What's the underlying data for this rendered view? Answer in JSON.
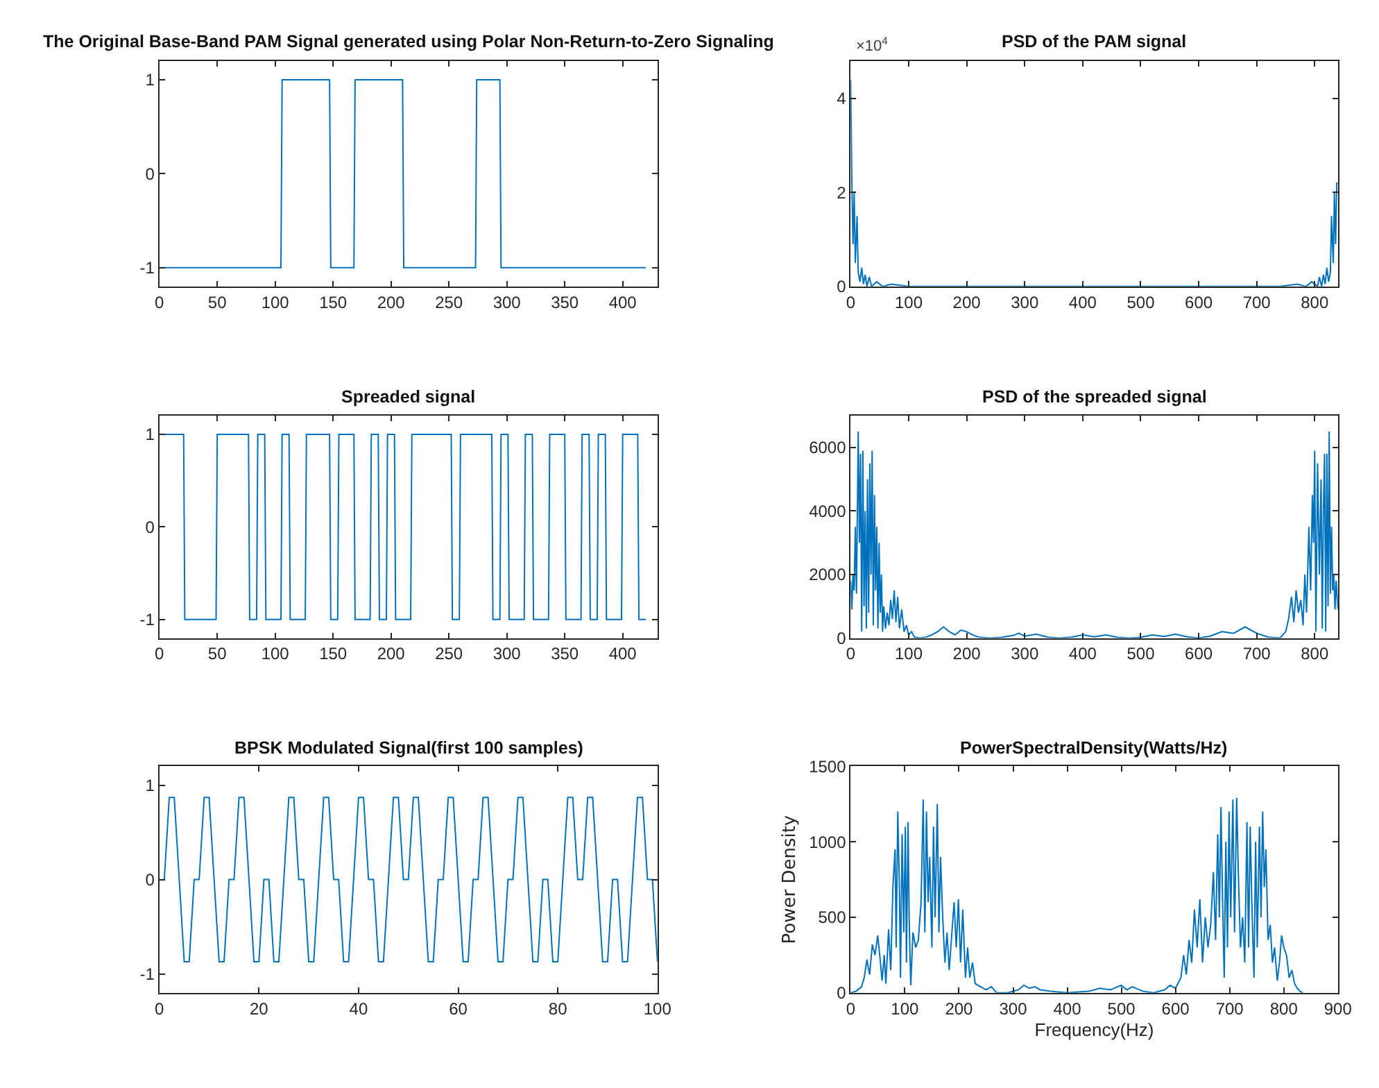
{
  "chart_data": [
    {
      "type": "line",
      "title": "The Original Base-Band PAM Signal generated using Polar Non-Return-to-Zero Signaling",
      "xlim": [
        0,
        430
      ],
      "xticks": [
        0,
        50,
        100,
        150,
        200,
        250,
        300,
        350,
        400
      ],
      "ylim": [
        -1.2,
        1.2
      ],
      "yticks": [
        -1,
        0,
        1
      ],
      "series": [
        {
          "color": "#0072bd",
          "x": [
            1,
            105,
            106,
            147,
            148,
            168,
            169,
            210,
            211,
            273,
            274,
            294,
            295,
            420
          ],
          "values": [
            -1,
            -1,
            1,
            1,
            -1,
            -1,
            1,
            1,
            -1,
            -1,
            1,
            1,
            -1,
            -1
          ]
        }
      ]
    },
    {
      "type": "line",
      "title": "PSD of the PAM signal",
      "annotations": [
        "×10$^{4}$"
      ],
      "xlim": [
        0,
        840
      ],
      "xticks": [
        0,
        100,
        200,
        300,
        400,
        500,
        600,
        700,
        800
      ],
      "ylim": [
        0,
        4.8
      ],
      "yticks": [
        0,
        2,
        4
      ],
      "series": [
        {
          "color": "#0072bd",
          "x": [
            0,
            2,
            4,
            6,
            8,
            11,
            13,
            16,
            19,
            22,
            25,
            28,
            32,
            36,
            45,
            55,
            70,
            100,
            200,
            400,
            600,
            740,
            770,
            785,
            795,
            805,
            808,
            812,
            815,
            818,
            821,
            824,
            827,
            829,
            832,
            834,
            836,
            838,
            840
          ],
          "values": [
            4.4,
            2.2,
            0.9,
            2,
            0.5,
            1.5,
            0.3,
            0.1,
            0.4,
            0.05,
            0.25,
            0,
            0.2,
            0,
            0.1,
            0,
            0.05,
            0,
            0,
            0,
            0,
            0,
            0.05,
            0,
            0.1,
            0,
            0.2,
            0,
            0.25,
            0.05,
            0.4,
            0.1,
            0.3,
            1.5,
            0.5,
            2,
            0.9,
            2.2,
            2.2
          ]
        }
      ]
    },
    {
      "type": "line",
      "title": "Spreaded signal",
      "xlim": [
        0,
        430
      ],
      "xticks": [
        0,
        50,
        100,
        150,
        200,
        250,
        300,
        350,
        400
      ],
      "ylim": [
        -1.2,
        1.2
      ],
      "yticks": [
        -1,
        0,
        1
      ],
      "series": [
        {
          "color": "#0072bd",
          "x": [
            1,
            21,
            22,
            49,
            50,
            77,
            78,
            84,
            85,
            91,
            92,
            105,
            106,
            112,
            113,
            126,
            127,
            147,
            148,
            154,
            155,
            168,
            169,
            182,
            183,
            189,
            190,
            196,
            197,
            203,
            204,
            217,
            218,
            252,
            253,
            259,
            260,
            287,
            288,
            294,
            295,
            301,
            302,
            315,
            316,
            322,
            323,
            336,
            337,
            350,
            351,
            364,
            365,
            371,
            372,
            378,
            379,
            385,
            386,
            399,
            400,
            413,
            414,
            420
          ],
          "values": [
            1,
            1,
            -1,
            -1,
            1,
            1,
            -1,
            -1,
            1,
            1,
            -1,
            -1,
            1,
            1,
            -1,
            -1,
            1,
            1,
            -1,
            -1,
            1,
            1,
            -1,
            -1,
            1,
            1,
            -1,
            -1,
            1,
            1,
            -1,
            -1,
            1,
            1,
            -1,
            -1,
            1,
            1,
            -1,
            -1,
            1,
            1,
            -1,
            -1,
            1,
            1,
            -1,
            -1,
            1,
            1,
            -1,
            -1,
            1,
            1,
            -1,
            -1,
            1,
            1,
            -1,
            -1,
            1,
            1,
            -1,
            -1
          ]
        }
      ]
    },
    {
      "type": "line",
      "title": "PSD of the spreaded signal",
      "xlim": [
        0,
        840
      ],
      "xticks": [
        0,
        100,
        200,
        300,
        400,
        500,
        600,
        700,
        800
      ],
      "ylim": [
        0,
        7000
      ],
      "yticks": [
        0,
        2000,
        4000,
        6000
      ],
      "series": [
        {
          "color": "#0072bd",
          "x": [
            0,
            2,
            4,
            6,
            8,
            10,
            13,
            15,
            17,
            19,
            21,
            23,
            25,
            27,
            29,
            31,
            33,
            35,
            37,
            39,
            41,
            43,
            45,
            47,
            49,
            51,
            53,
            55,
            57,
            60,
            63,
            66,
            69,
            72,
            75,
            78,
            81,
            84,
            88,
            92,
            96,
            100,
            105,
            110,
            120,
            130,
            140,
            150,
            160,
            170,
            180,
            190,
            200,
            210,
            220,
            240,
            260,
            280,
            290,
            300,
            320,
            340,
            360,
            380,
            400,
            420,
            440,
            460,
            480,
            500,
            520,
            540,
            560,
            580,
            600,
            620,
            640,
            660,
            680,
            700,
            720,
            740,
            750,
            755,
            760,
            764,
            768,
            772,
            776,
            780,
            783,
            786,
            790,
            793,
            796,
            798,
            800,
            802,
            805,
            808,
            811,
            813,
            815,
            817,
            819,
            821,
            823,
            825,
            827,
            829,
            831,
            833,
            835,
            837,
            840
          ],
          "values": [
            1800,
            900,
            2000,
            1500,
            3500,
            1400,
            6500,
            3000,
            5800,
            200,
            5900,
            1000,
            4000,
            300,
            5000,
            800,
            5500,
            2000,
            5900,
            400,
            4500,
            1500,
            3500,
            300,
            3000,
            800,
            2000,
            200,
            1000,
            300,
            800,
            400,
            1200,
            600,
            1500,
            500,
            1300,
            300,
            900,
            200,
            400,
            100,
            200,
            30,
            0,
            30,
            100,
            200,
            350,
            200,
            100,
            250,
            200,
            100,
            30,
            0,
            20,
            80,
            150,
            60,
            120,
            30,
            0,
            30,
            100,
            40,
            100,
            20,
            0,
            20,
            100,
            50,
            120,
            40,
            0,
            60,
            200,
            150,
            350,
            150,
            30,
            0,
            200,
            600,
            1300,
            500,
            1500,
            800,
            1200,
            400,
            2000,
            800,
            3500,
            1500,
            4500,
            3000,
            5900,
            200,
            5500,
            2000,
            5000,
            300,
            4000,
            5800,
            200,
            5800,
            1000,
            6500,
            1400,
            3500,
            1500,
            2000,
            900,
            1800,
            900
          ]
        }
      ]
    },
    {
      "type": "line",
      "title": "BPSK Modulated Signal(first 100 samples)",
      "xlim": [
        0,
        100
      ],
      "xticks": [
        0,
        20,
        40,
        60,
        80,
        100
      ],
      "ylim": [
        -1.2,
        1.2
      ],
      "yticks": [
        -1,
        0,
        1
      ],
      "series": [
        {
          "color": "#0072bd",
          "x": [
            1,
            2,
            3,
            4,
            5,
            6,
            7,
            8,
            9,
            10,
            11,
            12,
            13,
            14,
            15,
            16,
            17,
            18,
            19,
            20,
            21,
            22,
            23,
            24,
            25,
            26,
            27,
            28,
            29,
            30,
            31,
            32,
            33,
            34,
            35,
            36,
            37,
            38,
            39,
            40,
            41,
            42,
            43,
            44,
            45,
            46,
            47,
            48,
            49,
            50,
            51,
            52,
            53,
            54,
            55,
            56,
            57,
            58,
            59,
            60,
            61,
            62,
            63,
            64,
            65,
            66,
            67,
            68,
            69,
            70,
            71,
            72,
            73,
            74,
            75,
            76,
            77,
            78,
            79,
            80,
            81,
            82,
            83,
            84,
            85,
            86,
            87,
            88,
            89,
            90,
            91,
            92,
            93,
            94,
            95,
            96,
            97,
            98,
            99,
            100
          ],
          "values": [
            0,
            0.87,
            0.87,
            0,
            -0.87,
            -0.87,
            0,
            0,
            0.87,
            0.87,
            0,
            -0.87,
            -0.87,
            0,
            0,
            0.87,
            0.87,
            0,
            -0.87,
            -0.87,
            0,
            0,
            -0.87,
            -0.87,
            0,
            0.87,
            0.87,
            0,
            0,
            -0.87,
            -0.87,
            0,
            0.87,
            0.87,
            0,
            0,
            -0.87,
            -0.87,
            0,
            0.87,
            0.87,
            0,
            0,
            -0.87,
            -0.87,
            0,
            0.87,
            0.87,
            0,
            0,
            0.87,
            0.87,
            0,
            -0.87,
            -0.87,
            0,
            0,
            0.87,
            0.87,
            0,
            -0.87,
            -0.87,
            0,
            0,
            0.87,
            0.87,
            0,
            -0.87,
            -0.87,
            0,
            0,
            0.87,
            0.87,
            0,
            -0.87,
            -0.87,
            0,
            0,
            -0.87,
            -0.87,
            0,
            0.87,
            0.87,
            0,
            0,
            0.87,
            0.87,
            0,
            -0.87,
            -0.87,
            0,
            0,
            -0.87,
            -0.87,
            0,
            0.87,
            0.87,
            0,
            0,
            -0.87
          ]
        }
      ]
    },
    {
      "type": "line",
      "title": "PowerSpectralDensity(Watts/Hz)",
      "xlabel": "Frequency(Hz)",
      "ylabel": "Power Density",
      "xlim": [
        0,
        900
      ],
      "xticks": [
        0,
        100,
        200,
        300,
        400,
        500,
        600,
        700,
        800,
        900
      ],
      "ylim": [
        0,
        1500
      ],
      "yticks": [
        0,
        500,
        1000,
        1500
      ],
      "series": [
        {
          "color": "#0072bd",
          "x": [
            0,
            10,
            20,
            25,
            30,
            35,
            40,
            45,
            50,
            55,
            58,
            62,
            65,
            70,
            74,
            78,
            82,
            84,
            87,
            90,
            92,
            95,
            98,
            101,
            103,
            106,
            108,
            111,
            115,
            120,
            125,
            130,
            134,
            137,
            140,
            143,
            146,
            150,
            153,
            156,
            160,
            163,
            166,
            170,
            174,
            178,
            182,
            187,
            191,
            195,
            199,
            203,
            207,
            212,
            216,
            220,
            225,
            230,
            240,
            250,
            260,
            270,
            290,
            310,
            320,
            330,
            340,
            350,
            370,
            400,
            440,
            460,
            480,
            500,
            510,
            520,
            540,
            560,
            580,
            590,
            600,
            610,
            615,
            620,
            625,
            630,
            635,
            640,
            645,
            650,
            655,
            660,
            665,
            670,
            674,
            678,
            681,
            684,
            687,
            690,
            693,
            696,
            699,
            702,
            706,
            709,
            713,
            716,
            720,
            724,
            728,
            732,
            735,
            738,
            741,
            745,
            748,
            751,
            755,
            758,
            761,
            764,
            767,
            771,
            775,
            779,
            783,
            788,
            792,
            796,
            800,
            805,
            810,
            815,
            820,
            825,
            830,
            835
          ],
          "values": [
            0,
            10,
            40,
            100,
            220,
            120,
            320,
            250,
            380,
            200,
            80,
            250,
            60,
            420,
            150,
            700,
            950,
            300,
            1200,
            700,
            100,
            1050,
            400,
            1100,
            200,
            1130,
            500,
            50,
            400,
            300,
            350,
            600,
            1280,
            400,
            1200,
            600,
            900,
            300,
            1100,
            500,
            1250,
            400,
            900,
            500,
            200,
            400,
            150,
            400,
            600,
            300,
            620,
            200,
            550,
            100,
            300,
            100,
            200,
            60,
            40,
            20,
            40,
            0,
            0,
            20,
            50,
            30,
            40,
            20,
            10,
            0,
            10,
            30,
            20,
            50,
            20,
            40,
            10,
            0,
            20,
            50,
            30,
            100,
            250,
            120,
            350,
            200,
            550,
            300,
            620,
            200,
            500,
            300,
            450,
            800,
            350,
            1050,
            500,
            1230,
            600,
            100,
            1000,
            300,
            1200,
            500,
            1280,
            400,
            1290,
            800,
            300,
            500,
            200,
            1130,
            300,
            1100,
            600,
            100,
            1000,
            300,
            1100,
            500,
            1200,
            700,
            950,
            350,
            450,
            200,
            300,
            80,
            200,
            380,
            300,
            250,
            100,
            150,
            60,
            30,
            10,
            0
          ]
        }
      ]
    }
  ]
}
